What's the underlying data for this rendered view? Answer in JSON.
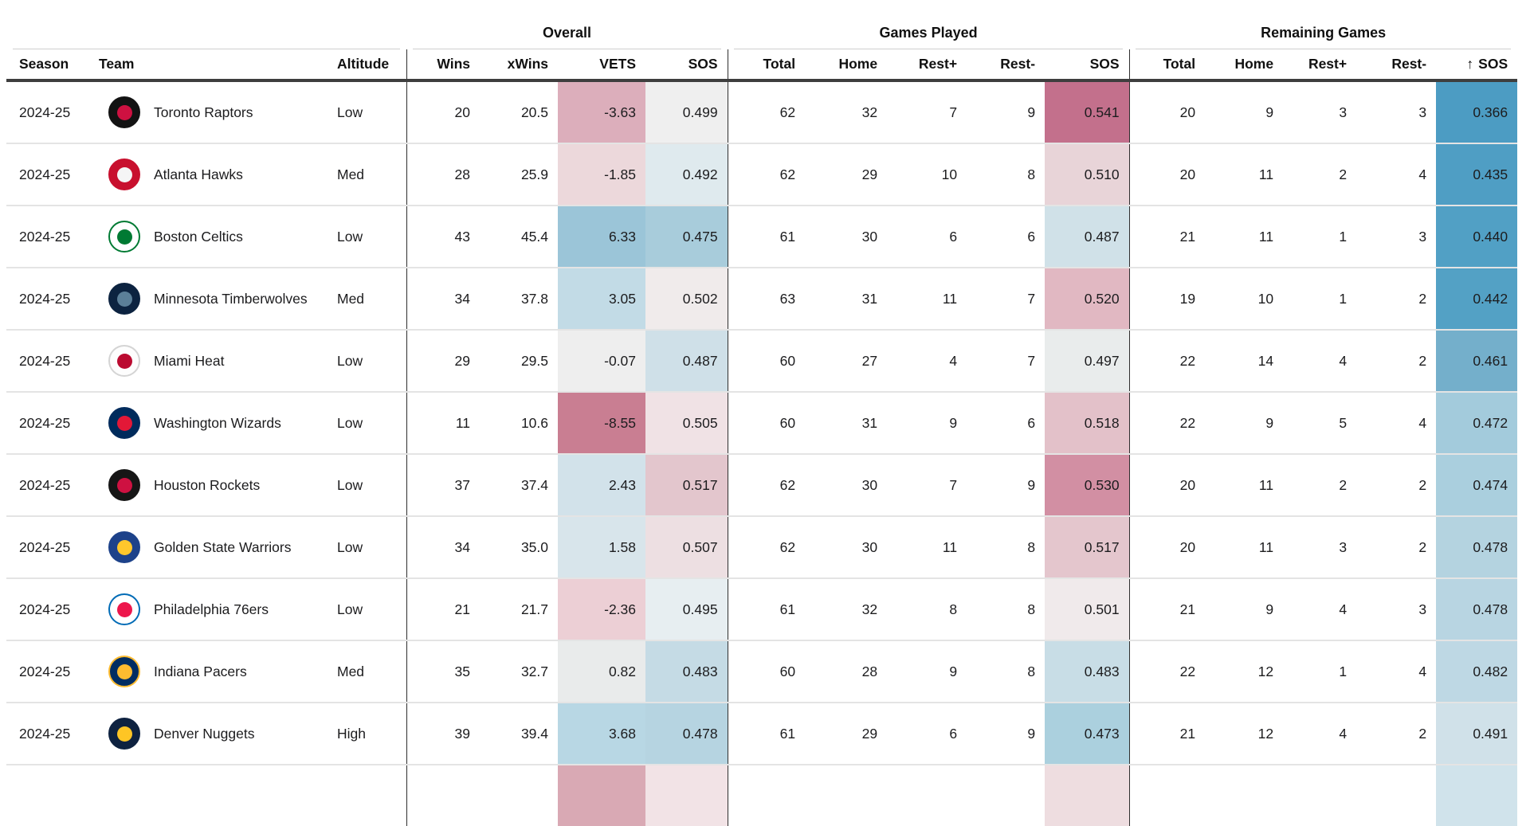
{
  "page": {
    "background": "#ffffff"
  },
  "table": {
    "sort_arrow": "↑",
    "groups": [
      {
        "label": "",
        "span": 3
      },
      {
        "label": "Overall",
        "span": 4
      },
      {
        "label": "Games Played",
        "span": 5
      },
      {
        "label": "Remaining Games",
        "span": 5
      }
    ],
    "columns": [
      {
        "key": "season",
        "label": "Season",
        "align": "left"
      },
      {
        "key": "team",
        "label": "Team",
        "align": "left"
      },
      {
        "key": "altitude",
        "label": "Altitude",
        "align": "left"
      },
      {
        "key": "wins",
        "label": "Wins",
        "align": "right",
        "divider": true
      },
      {
        "key": "xwins",
        "label": "xWins",
        "align": "right"
      },
      {
        "key": "vets",
        "label": "VETS",
        "align": "right",
        "heat": true
      },
      {
        "key": "sos",
        "label": "SOS",
        "align": "right",
        "heat": true
      },
      {
        "key": "gp_total",
        "label": "Total",
        "align": "right",
        "divider": true
      },
      {
        "key": "gp_home",
        "label": "Home",
        "align": "right"
      },
      {
        "key": "gp_rest_plus",
        "label": "Rest+",
        "align": "right"
      },
      {
        "key": "gp_rest_minus",
        "label": "Rest-",
        "align": "right"
      },
      {
        "key": "gp_sos",
        "label": "SOS",
        "align": "right",
        "heat": true
      },
      {
        "key": "rg_total",
        "label": "Total",
        "align": "right",
        "divider": true
      },
      {
        "key": "rg_home",
        "label": "Home",
        "align": "right"
      },
      {
        "key": "rg_rest_plus",
        "label": "Rest+",
        "align": "right"
      },
      {
        "key": "rg_rest_minus",
        "label": "Rest-",
        "align": "right"
      },
      {
        "key": "rg_sos",
        "label": "SOS",
        "align": "right",
        "heat": true,
        "sorted": "asc"
      }
    ],
    "rows": [
      {
        "season": "2024-25",
        "team": "Toronto Raptors",
        "altitude": "Low",
        "wins": "20",
        "xwins": "20.5",
        "vets": "-3.63",
        "sos": "0.499",
        "gp_total": "62",
        "gp_home": "32",
        "gp_rest_plus": "7",
        "gp_rest_minus": "9",
        "gp_sos": "0.541",
        "rg_total": "20",
        "rg_home": "9",
        "rg_rest_plus": "3",
        "rg_rest_minus": "3",
        "rg_sos": "0.366",
        "colors": {
          "vets": "#dcaebb",
          "sos": "#efefef",
          "gp_sos": "#c3708c",
          "rg_sos": "#4c9cc3"
        },
        "logo": {
          "bg": "#131313",
          "ring": "#131313",
          "dot": "#ce1141"
        }
      },
      {
        "season": "2024-25",
        "team": "Atlanta Hawks",
        "altitude": "Med",
        "wins": "28",
        "xwins": "25.9",
        "vets": "-1.85",
        "sos": "0.492",
        "gp_total": "62",
        "gp_home": "29",
        "gp_rest_plus": "10",
        "gp_rest_minus": "8",
        "gp_sos": "0.510",
        "rg_total": "20",
        "rg_home": "11",
        "rg_rest_plus": "2",
        "rg_rest_minus": "4",
        "rg_sos": "0.435",
        "colors": {
          "vets": "#ecd8db",
          "sos": "#dfeaee",
          "gp_sos": "#e8d4d8",
          "rg_sos": "#4f9ec4"
        },
        "logo": {
          "bg": "#c8102e",
          "ring": "#c8102e",
          "dot": "#f5f5f5"
        }
      },
      {
        "season": "2024-25",
        "team": "Boston Celtics",
        "altitude": "Low",
        "wins": "43",
        "xwins": "45.4",
        "vets": "6.33",
        "sos": "0.475",
        "gp_total": "61",
        "gp_home": "30",
        "gp_rest_plus": "6",
        "gp_rest_minus": "6",
        "gp_sos": "0.487",
        "rg_total": "21",
        "rg_home": "11",
        "rg_rest_plus": "1",
        "rg_rest_minus": "3",
        "rg_sos": "0.440",
        "colors": {
          "vets": "#9bc5d8",
          "sos": "#a8ccdb",
          "gp_sos": "#d0e1e8",
          "rg_sos": "#51a0c5"
        },
        "logo": {
          "bg": "#ffffff",
          "ring": "#007a33",
          "dot": "#007a33"
        }
      },
      {
        "season": "2024-25",
        "team": "Minnesota Timberwolves",
        "altitude": "Med",
        "wins": "34",
        "xwins": "37.8",
        "vets": "3.05",
        "sos": "0.502",
        "gp_total": "63",
        "gp_home": "31",
        "gp_rest_plus": "11",
        "gp_rest_minus": "7",
        "gp_sos": "0.520",
        "rg_total": "19",
        "rg_home": "10",
        "rg_rest_plus": "1",
        "rg_rest_minus": "2",
        "rg_sos": "0.442",
        "colors": {
          "vets": "#c2dbe6",
          "sos": "#f0ebeb",
          "gp_sos": "#e1b8c2",
          "rg_sos": "#53a1c5"
        },
        "logo": {
          "bg": "#0c2340",
          "ring": "#0c2340",
          "dot": "#5b7f98"
        }
      },
      {
        "season": "2024-25",
        "team": "Miami Heat",
        "altitude": "Low",
        "wins": "29",
        "xwins": "29.5",
        "vets": "-0.07",
        "sos": "0.487",
        "gp_total": "60",
        "gp_home": "27",
        "gp_rest_plus": "4",
        "gp_rest_minus": "7",
        "gp_sos": "0.497",
        "rg_total": "22",
        "rg_home": "14",
        "rg_rest_plus": "4",
        "rg_rest_minus": "2",
        "rg_sos": "0.461",
        "colors": {
          "vets": "#eeeeee",
          "sos": "#cfe0e8",
          "gp_sos": "#e9ecec",
          "rg_sos": "#74afcb"
        },
        "logo": {
          "bg": "#fdfdfd",
          "ring": "#d4d4d4",
          "dot": "#bb0a30"
        }
      },
      {
        "season": "2024-25",
        "team": "Washington Wizards",
        "altitude": "Low",
        "wins": "11",
        "xwins": "10.6",
        "vets": "-8.55",
        "sos": "0.505",
        "gp_total": "60",
        "gp_home": "31",
        "gp_rest_plus": "9",
        "gp_rest_minus": "6",
        "gp_sos": "0.518",
        "rg_total": "22",
        "rg_home": "9",
        "rg_rest_plus": "5",
        "rg_rest_minus": "4",
        "rg_sos": "0.472",
        "colors": {
          "vets": "#c97e92",
          "sos": "#f0e2e5",
          "gp_sos": "#e3c1c9",
          "rg_sos": "#a3cbdc"
        },
        "logo": {
          "bg": "#002b5c",
          "ring": "#002b5c",
          "dot": "#e31837"
        }
      },
      {
        "season": "2024-25",
        "team": "Houston Rockets",
        "altitude": "Low",
        "wins": "37",
        "xwins": "37.4",
        "vets": "2.43",
        "sos": "0.517",
        "gp_total": "62",
        "gp_home": "30",
        "gp_rest_plus": "7",
        "gp_rest_minus": "9",
        "gp_sos": "0.530",
        "rg_total": "20",
        "rg_home": "11",
        "rg_rest_plus": "2",
        "rg_rest_minus": "2",
        "rg_sos": "0.474",
        "colors": {
          "vets": "#d2e2ea",
          "sos": "#e3c6cd",
          "gp_sos": "#d28fa3",
          "rg_sos": "#aacfde"
        },
        "logo": {
          "bg": "#161616",
          "ring": "#161616",
          "dot": "#ce1141"
        }
      },
      {
        "season": "2024-25",
        "team": "Golden State Warriors",
        "altitude": "Low",
        "wins": "34",
        "xwins": "35.0",
        "vets": "1.58",
        "sos": "0.507",
        "gp_total": "62",
        "gp_home": "30",
        "gp_rest_plus": "11",
        "gp_rest_minus": "8",
        "gp_sos": "0.517",
        "rg_total": "20",
        "rg_home": "11",
        "rg_rest_plus": "3",
        "rg_rest_minus": "2",
        "rg_sos": "0.478",
        "colors": {
          "vets": "#d8e5eb",
          "sos": "#eddfe2",
          "gp_sos": "#e4c6cd",
          "rg_sos": "#b4d3e0"
        },
        "logo": {
          "bg": "#1d428a",
          "ring": "#1d428a",
          "dot": "#ffc72c"
        }
      },
      {
        "season": "2024-25",
        "team": "Philadelphia 76ers",
        "altitude": "Low",
        "wins": "21",
        "xwins": "21.7",
        "vets": "-2.36",
        "sos": "0.495",
        "gp_total": "61",
        "gp_home": "32",
        "gp_rest_plus": "8",
        "gp_rest_minus": "8",
        "gp_sos": "0.501",
        "rg_total": "21",
        "rg_home": "9",
        "rg_rest_plus": "4",
        "rg_rest_minus": "3",
        "rg_sos": "0.478",
        "colors": {
          "vets": "#eccfd5",
          "sos": "#e7eef1",
          "gp_sos": "#f0eaeb",
          "rg_sos": "#b8d5e2"
        },
        "logo": {
          "bg": "#ffffff",
          "ring": "#006bb6",
          "dot": "#ed174c"
        }
      },
      {
        "season": "2024-25",
        "team": "Indiana Pacers",
        "altitude": "Med",
        "wins": "35",
        "xwins": "32.7",
        "vets": "0.82",
        "sos": "0.483",
        "gp_total": "60",
        "gp_home": "28",
        "gp_rest_plus": "9",
        "gp_rest_minus": "8",
        "gp_sos": "0.483",
        "rg_total": "22",
        "rg_home": "12",
        "rg_rest_plus": "1",
        "rg_rest_minus": "4",
        "rg_sos": "0.482",
        "colors": {
          "vets": "#e9ebeb",
          "sos": "#c5dbe5",
          "gp_sos": "#c8dde6",
          "rg_sos": "#bed8e4"
        },
        "logo": {
          "bg": "#002d62",
          "ring": "#fdbb30",
          "dot": "#fdbb30"
        }
      },
      {
        "season": "2024-25",
        "team": "Denver Nuggets",
        "altitude": "High",
        "wins": "39",
        "xwins": "39.4",
        "vets": "3.68",
        "sos": "0.478",
        "gp_total": "61",
        "gp_home": "29",
        "gp_rest_plus": "6",
        "gp_rest_minus": "9",
        "gp_sos": "0.473",
        "rg_total": "21",
        "rg_home": "12",
        "rg_rest_plus": "4",
        "rg_rest_minus": "2",
        "rg_sos": "0.491",
        "colors": {
          "vets": "#b8d7e4",
          "sos": "#b6d4e1",
          "gp_sos": "#abd0de",
          "rg_sos": "#d0e1e9"
        },
        "logo": {
          "bg": "#0e2240",
          "ring": "#0e2240",
          "dot": "#fec524"
        }
      }
    ],
    "partial_row": {
      "colors": {
        "vets": "#d9a9b4",
        "sos": "#f2e3e6",
        "gp_sos": "#eedde0",
        "rg_sos": "#d0e3eb"
      }
    }
  }
}
